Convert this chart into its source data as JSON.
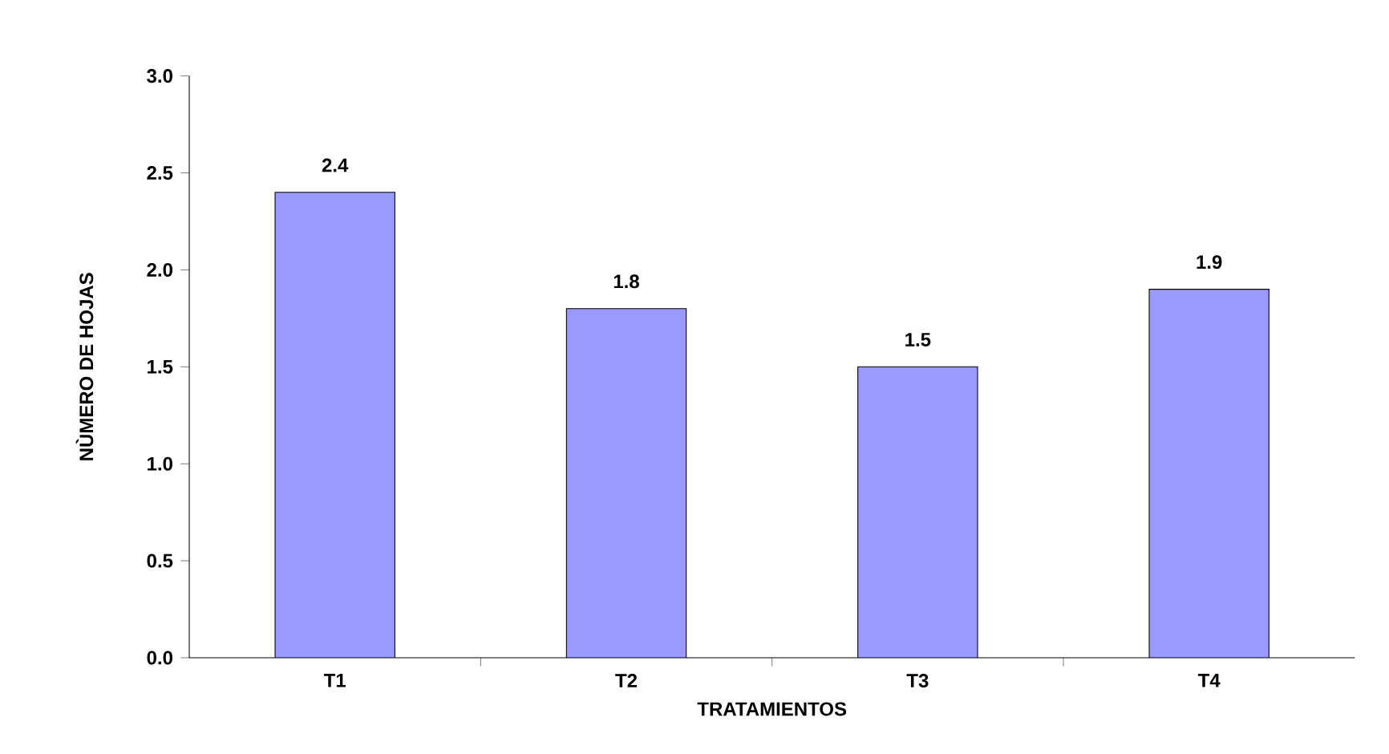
{
  "chart_data": {
    "type": "bar",
    "xlabel": "TRATAMIENTOS",
    "ylabel": "NÙMERO DE HOJAS",
    "categories": [
      "T1",
      "T2",
      "T3",
      "T4"
    ],
    "values": [
      2.4,
      1.8,
      1.5,
      1.9
    ],
    "color": "#9999ff",
    "ylim": [
      0,
      3
    ],
    "yticks": [
      {
        "value": 0,
        "label": "0.0"
      },
      0.5,
      {
        "value": 1,
        "label": "1.0"
      },
      1.5,
      {
        "value": 2,
        "label": "2.0"
      },
      2.5,
      {
        "value": 3,
        "label": "3.0"
      }
    ],
    "data_labels": true
  }
}
